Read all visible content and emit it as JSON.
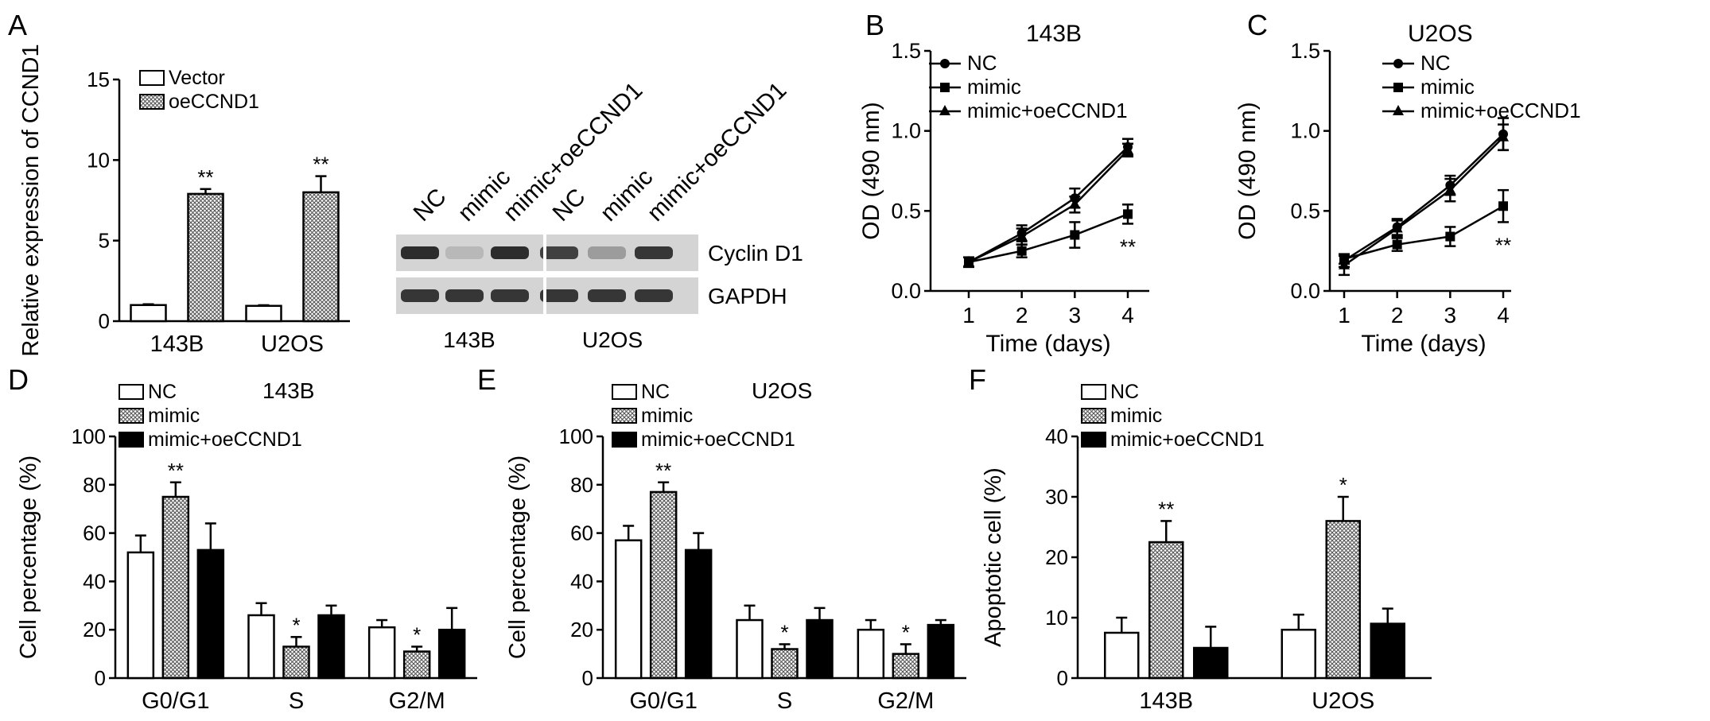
{
  "colors": {
    "black": "#000000",
    "white": "#ffffff",
    "gel_bg": "#d4d4d4",
    "band": "#1a1a1a",
    "hatch": "#9a9a9a"
  },
  "chart_data": [
    {
      "panel": "A",
      "type": "bar",
      "categories": [
        "143B",
        "U2OS"
      ],
      "ylabel": "Relative expression of CCND1",
      "ylim": [
        0,
        15
      ],
      "yticks": [
        0,
        5,
        10,
        15
      ],
      "legend_position": "top-left",
      "series": [
        {
          "name": "Vector",
          "fill": "white",
          "values": [
            1.0,
            0.95
          ],
          "errors": [
            0.05,
            0.04
          ],
          "sig": [
            "",
            ""
          ]
        },
        {
          "name": "oeCCND1",
          "fill": "hatch",
          "values": [
            7.9,
            8.0
          ],
          "errors": [
            0.3,
            1.0
          ],
          "sig": [
            "**",
            "**"
          ]
        }
      ]
    },
    {
      "panel": "B",
      "type": "line",
      "title": "143B",
      "xlabel": "Time (days)",
      "ylabel": "OD (490 nm)",
      "x": [
        1,
        2,
        3,
        4
      ],
      "ylim": [
        0,
        1.5
      ],
      "yticks": [
        "0.0",
        "0.5",
        "1.0",
        "1.5"
      ],
      "legend_position": "top-left",
      "series": [
        {
          "name": "NC",
          "marker": "circle",
          "values": [
            0.18,
            0.36,
            0.58,
            0.9
          ],
          "errors": [
            0.03,
            0.05,
            0.06,
            0.05
          ]
        },
        {
          "name": "mimic",
          "marker": "square",
          "values": [
            0.18,
            0.25,
            0.35,
            0.48
          ],
          "errors": [
            0.03,
            0.04,
            0.08,
            0.06
          ]
        },
        {
          "name": "mimic+oeCCND1",
          "marker": "triangle",
          "values": [
            0.18,
            0.34,
            0.54,
            0.88
          ],
          "errors": [
            0.03,
            0.05,
            0.05,
            0.04
          ]
        }
      ],
      "annotation": {
        "x": 4,
        "text": "**"
      }
    },
    {
      "panel": "C",
      "type": "line",
      "title": "U2OS",
      "xlabel": "Time (days)",
      "ylabel": "OD (490 nm)",
      "x": [
        1,
        2,
        3,
        4
      ],
      "ylim": [
        0,
        1.5
      ],
      "yticks": [
        "0.0",
        "0.5",
        "1.0",
        "1.5"
      ],
      "legend_position": "top-left",
      "series": [
        {
          "name": "NC",
          "marker": "circle",
          "values": [
            0.19,
            0.4,
            0.66,
            0.98
          ],
          "errors": [
            0.04,
            0.05,
            0.06,
            0.1
          ]
        },
        {
          "name": "mimic",
          "marker": "square",
          "values": [
            0.2,
            0.29,
            0.34,
            0.53
          ],
          "errors": [
            0.03,
            0.04,
            0.06,
            0.1
          ]
        },
        {
          "name": "mimic+oeCCND1",
          "marker": "triangle",
          "values": [
            0.16,
            0.39,
            0.63,
            0.96
          ],
          "errors": [
            0.06,
            0.05,
            0.07,
            0.08
          ]
        }
      ],
      "annotation": {
        "x": 4,
        "text": "**"
      }
    },
    {
      "panel": "D",
      "type": "bar",
      "title": "143B",
      "categories": [
        "G0/G1",
        "S",
        "G2/M"
      ],
      "ylabel": "Cell percentage (%)",
      "ylim": [
        0,
        100
      ],
      "yticks": [
        0,
        20,
        40,
        60,
        80,
        100
      ],
      "legend_position": "top-left",
      "series": [
        {
          "name": "NC",
          "fill": "white",
          "values": [
            52,
            26,
            21
          ],
          "errors": [
            7,
            5,
            3
          ],
          "sig": [
            "",
            "",
            ""
          ]
        },
        {
          "name": "mimic",
          "fill": "hatch",
          "values": [
            75,
            13,
            11
          ],
          "errors": [
            6,
            4,
            2
          ],
          "sig": [
            "**",
            "*",
            "*"
          ]
        },
        {
          "name": "mimic+oeCCND1",
          "fill": "black",
          "values": [
            53,
            26,
            20
          ],
          "errors": [
            11,
            4,
            9
          ],
          "sig": [
            "",
            "",
            ""
          ]
        }
      ]
    },
    {
      "panel": "E",
      "type": "bar",
      "title": "U2OS",
      "categories": [
        "G0/G1",
        "S",
        "G2/M"
      ],
      "ylabel": "Cell percentage (%)",
      "ylim": [
        0,
        100
      ],
      "yticks": [
        0,
        20,
        40,
        60,
        80,
        100
      ],
      "legend_position": "top-left",
      "series": [
        {
          "name": "NC",
          "fill": "white",
          "values": [
            57,
            24,
            20
          ],
          "errors": [
            6,
            6,
            4
          ],
          "sig": [
            "",
            "",
            ""
          ]
        },
        {
          "name": "mimic",
          "fill": "hatch",
          "values": [
            77,
            12,
            10
          ],
          "errors": [
            4,
            2,
            4
          ],
          "sig": [
            "**",
            "*",
            "*"
          ]
        },
        {
          "name": "mimic+oeCCND1",
          "fill": "black",
          "values": [
            53,
            24,
            22
          ],
          "errors": [
            7,
            5,
            2
          ],
          "sig": [
            "",
            "",
            ""
          ]
        }
      ]
    },
    {
      "panel": "F",
      "type": "bar",
      "categories": [
        "143B",
        "U2OS"
      ],
      "ylabel": "Apoptotic cell (%)",
      "ylim": [
        0,
        40
      ],
      "yticks": [
        0,
        10,
        20,
        30,
        40
      ],
      "legend_position": "top-left",
      "series": [
        {
          "name": "NC",
          "fill": "white",
          "values": [
            7.5,
            8.0
          ],
          "errors": [
            2.5,
            2.5
          ],
          "sig": [
            "",
            ""
          ]
        },
        {
          "name": "mimic",
          "fill": "hatch",
          "values": [
            22.5,
            26.0
          ],
          "errors": [
            3.5,
            4.0
          ],
          "sig": [
            "**",
            "*"
          ]
        },
        {
          "name": "mimic+oeCCND1",
          "fill": "black",
          "values": [
            5.0,
            9.0
          ],
          "errors": [
            3.5,
            2.5
          ],
          "sig": [
            "",
            ""
          ]
        }
      ]
    }
  ],
  "western_blot": {
    "lanes": [
      "NC",
      "mimic",
      "mimic+oeCCND1",
      "NC",
      "mimic",
      "mimic+oeCCND1"
    ],
    "rows": [
      {
        "label": "Cyclin D1",
        "intensities": [
          0.9,
          0.15,
          0.9,
          0.8,
          0.3,
          0.85
        ]
      },
      {
        "label": "GAPDH",
        "intensities": [
          0.85,
          0.85,
          0.85,
          0.85,
          0.85,
          0.85
        ]
      }
    ],
    "groups": [
      "143B",
      "U2OS"
    ]
  },
  "panel_letters": [
    "A",
    "B",
    "C",
    "D",
    "E",
    "F"
  ]
}
